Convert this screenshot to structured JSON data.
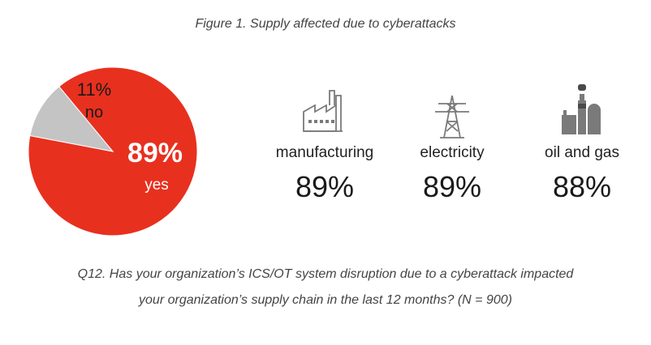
{
  "title": "Figure 1. Supply affected due to cyberattacks",
  "chart_data": {
    "type": "pie",
    "title": "Figure 1. Supply affected due to cyberattacks",
    "slices": [
      {
        "label": "yes",
        "value": 89,
        "value_label": "89%",
        "color": "#e8301f"
      },
      {
        "label": "no",
        "value": 11,
        "value_label": "11%",
        "color": "#c4c4c4"
      }
    ]
  },
  "stats": [
    {
      "label": "manufacturing",
      "value": "89%",
      "icon": "factory-icon"
    },
    {
      "label": "electricity",
      "value": "89%",
      "icon": "power-tower-icon"
    },
    {
      "label": "oil and gas",
      "value": "88%",
      "icon": "refinery-icon"
    }
  ],
  "caption": {
    "line1": "Q12. Has your organization’s ICS/OT system disruption due to a cyberattack impacted",
    "line2": "your organization’s supply chain in the last 12 months? (N = 900)"
  },
  "colors": {
    "accent": "#e8301f",
    "neutral": "#c4c4c4",
    "icon": "#7a7a7a"
  }
}
